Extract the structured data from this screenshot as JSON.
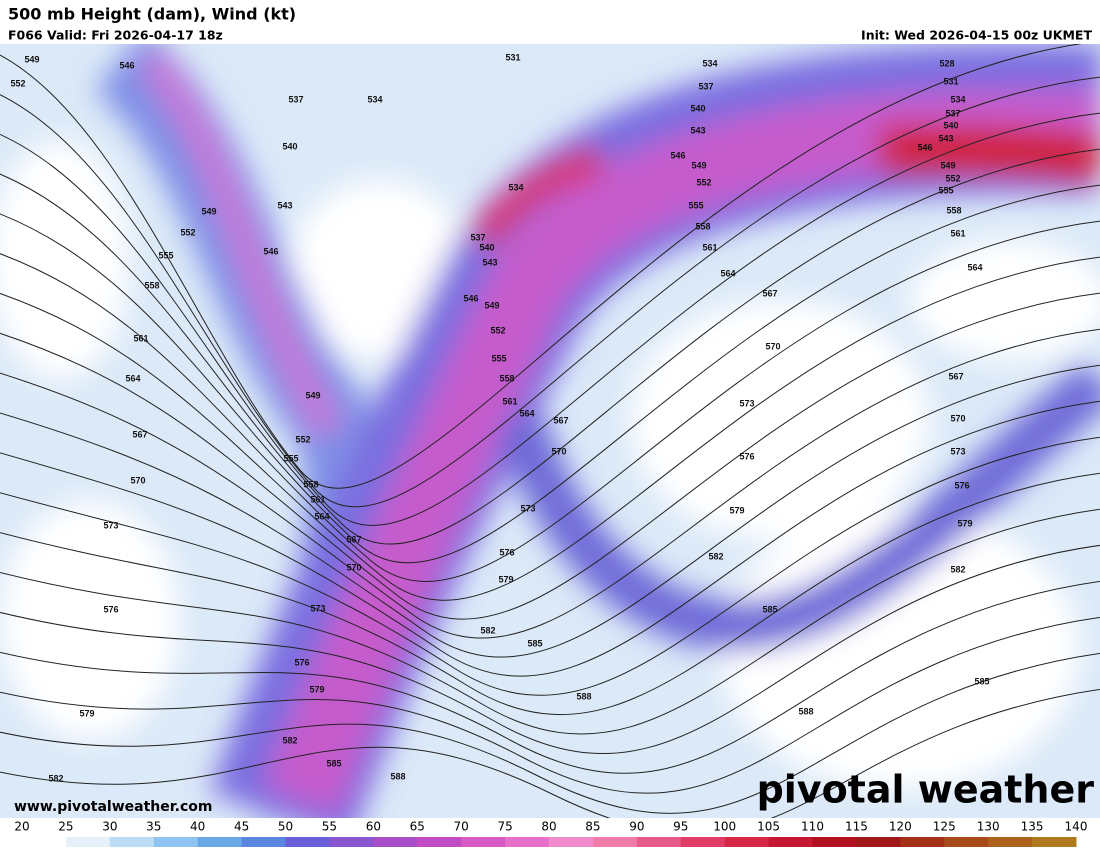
{
  "header": {
    "title": "500 mb Height (dam), Wind (kt)",
    "valid": "F066 Valid: Fri 2026-04-17 18z",
    "init": "Init: Wed 2026-04-15 00z UKMET"
  },
  "map": {
    "contour_labels": [
      549,
      546,
      552,
      537,
      534,
      531,
      534,
      537,
      540,
      543,
      546,
      549,
      552,
      555,
      558,
      561,
      564,
      567,
      570,
      573,
      576,
      579,
      582,
      585,
      588,
      528,
      531,
      534,
      537,
      540,
      543,
      546,
      549,
      552,
      555,
      558,
      561,
      564,
      567,
      570,
      573,
      576,
      579,
      582,
      585,
      540,
      543,
      546,
      549,
      552,
      555,
      558,
      561,
      564,
      567,
      570,
      573,
      576,
      579,
      582,
      549,
      552,
      555,
      558,
      561,
      564,
      567,
      570,
      573,
      576,
      579,
      582,
      585,
      588,
      588,
      585,
      582,
      579,
      576,
      573,
      570,
      567,
      564,
      561,
      558,
      555,
      552,
      549,
      546,
      543,
      540,
      537,
      534
    ]
  },
  "colorbar": {
    "ticks": [
      20,
      25,
      30,
      35,
      40,
      45,
      50,
      55,
      60,
      65,
      70,
      75,
      80,
      85,
      90,
      95,
      100,
      105,
      110,
      115,
      120,
      125,
      130,
      135,
      140
    ],
    "colors": [
      "#ffffff",
      "#e6f0fb",
      "#bcdcf5",
      "#8ec4ef",
      "#69a9e8",
      "#5b86e0",
      "#6a5fd8",
      "#8a55d0",
      "#a84fc8",
      "#c24cc4",
      "#d858c4",
      "#e870c8",
      "#f08ccc",
      "#f07aa8",
      "#e85a88",
      "#e03c66",
      "#d42846",
      "#c41830",
      "#b01020",
      "#a01818",
      "#a43018",
      "#a84a1a",
      "#ac621c",
      "#b07a1e",
      "#b48a20"
    ]
  },
  "footer": {
    "url": "www.pivotalweather.com",
    "logo": "pivotal weather"
  }
}
